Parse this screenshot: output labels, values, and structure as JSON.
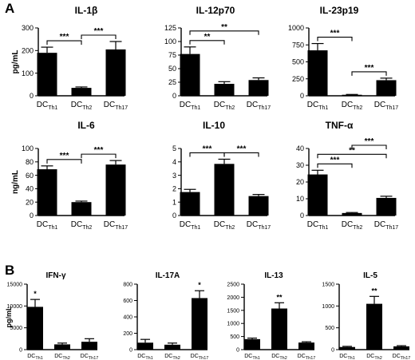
{
  "figure": {
    "panels": [
      {
        "letter": "A",
        "unit_labels": [
          "pg/mL",
          "ng/mL"
        ]
      },
      {
        "letter": "B",
        "unit_labels": [
          "pg/mL"
        ]
      }
    ]
  },
  "chart_data": [
    {
      "panel": "A",
      "type": "bar",
      "title": "IL-1β",
      "categories": [
        {
          "main": "DC",
          "sub": "Th1"
        },
        {
          "main": "DC",
          "sub": "Th2"
        },
        {
          "main": "DC",
          "sub": "Th17"
        }
      ],
      "values": [
        190,
        35,
        205
      ],
      "errors": [
        25,
        4,
        35
      ],
      "ylim": [
        0,
        300
      ],
      "yticks": [
        0,
        100,
        200,
        300
      ],
      "ylabel": "pg/mL",
      "significance": [
        {
          "from": 0,
          "to": 1,
          "label": "***"
        },
        {
          "from": 1,
          "to": 2,
          "label": "***"
        }
      ]
    },
    {
      "panel": "A",
      "type": "bar",
      "title": "IL-12p70",
      "categories": [
        {
          "main": "DC",
          "sub": "Th1"
        },
        {
          "main": "DC",
          "sub": "Th2"
        },
        {
          "main": "DC",
          "sub": "Th17"
        }
      ],
      "values": [
        77,
        22,
        29
      ],
      "errors": [
        13,
        4,
        4
      ],
      "ylim": [
        0,
        125
      ],
      "yticks": [
        0,
        25,
        50,
        75,
        100,
        125
      ],
      "ylabel": "",
      "significance": [
        {
          "from": 0,
          "to": 1,
          "label": "**"
        },
        {
          "from": 0,
          "to": 2,
          "label": "**"
        }
      ]
    },
    {
      "panel": "A",
      "type": "bar",
      "title": "IL-23p19",
      "categories": [
        {
          "main": "DC",
          "sub": "Th1"
        },
        {
          "main": "DC",
          "sub": "Th2"
        },
        {
          "main": "DC",
          "sub": "Th17"
        }
      ],
      "values": [
        670,
        15,
        230
      ],
      "errors": [
        100,
        5,
        30
      ],
      "ylim": [
        0,
        1000
      ],
      "yticks": [
        0,
        250,
        500,
        750,
        1000
      ],
      "ylabel": "",
      "significance": [
        {
          "from": 0,
          "to": 1,
          "label": "***"
        },
        {
          "from": 1,
          "to": 2,
          "label": "***"
        }
      ]
    },
    {
      "panel": "A",
      "type": "bar",
      "title": "IL-6",
      "categories": [
        {
          "main": "DC",
          "sub": "Th1"
        },
        {
          "main": "DC",
          "sub": "Th2"
        },
        {
          "main": "DC",
          "sub": "Th17"
        }
      ],
      "values": [
        69,
        20,
        76
      ],
      "errors": [
        5,
        1.5,
        6
      ],
      "ylim": [
        0,
        100
      ],
      "yticks": [
        0,
        20,
        40,
        60,
        80,
        100
      ],
      "ylabel": "ng/mL",
      "significance": [
        {
          "from": 0,
          "to": 1,
          "label": "***"
        },
        {
          "from": 1,
          "to": 2,
          "label": "***"
        }
      ]
    },
    {
      "panel": "A",
      "type": "bar",
      "title": "IL-10",
      "categories": [
        {
          "main": "DC",
          "sub": "Th1"
        },
        {
          "main": "DC",
          "sub": "Th2"
        },
        {
          "main": "DC",
          "sub": "Th17"
        }
      ],
      "values": [
        1.75,
        3.85,
        1.45
      ],
      "errors": [
        0.2,
        0.35,
        0.12
      ],
      "ylim": [
        0,
        5
      ],
      "yticks": [
        0,
        1,
        2,
        3,
        4,
        5
      ],
      "ylabel": "",
      "significance": [
        {
          "from": 0,
          "to": 1,
          "label": "***"
        },
        {
          "from": 1,
          "to": 2,
          "label": "***"
        }
      ]
    },
    {
      "panel": "A",
      "type": "bar",
      "title": "TNF-α",
      "categories": [
        {
          "main": "DC",
          "sub": "Th1"
        },
        {
          "main": "DC",
          "sub": "Th2"
        },
        {
          "main": "DC",
          "sub": "Th17"
        }
      ],
      "values": [
        24.5,
        1.5,
        10.5
      ],
      "errors": [
        2.5,
        0.3,
        1
      ],
      "ylim": [
        0,
        40
      ],
      "yticks": [
        0,
        10,
        20,
        30,
        40
      ],
      "ylabel": "",
      "significance": [
        {
          "from": 0,
          "to": 1,
          "label": "***"
        },
        {
          "from": 0,
          "to": 2,
          "label": "**"
        },
        {
          "from": 1,
          "to": 2,
          "label": "***"
        }
      ]
    },
    {
      "panel": "B",
      "type": "bar",
      "title": "IFN-γ",
      "categories": [
        {
          "main": "DC",
          "sub": "Th1"
        },
        {
          "main": "DC",
          "sub": "Th2"
        },
        {
          "main": "DC",
          "sub": "Th17"
        }
      ],
      "values": [
        9800,
        1200,
        1800
      ],
      "errors": [
        1700,
        300,
        700
      ],
      "ylim": [
        0,
        15000
      ],
      "yticks": [
        0,
        5000,
        10000,
        15000
      ],
      "ylabel": "pg/mL",
      "bar_labels": [
        "*",
        "",
        ""
      ]
    },
    {
      "panel": "B",
      "type": "bar",
      "title": "IL-17A",
      "categories": [
        {
          "main": "DC",
          "sub": "Th1"
        },
        {
          "main": "DC",
          "sub": "Th2"
        },
        {
          "main": "DC",
          "sub": "Th17"
        }
      ],
      "values": [
        85,
        60,
        630
      ],
      "errors": [
        40,
        20,
        90
      ],
      "ylim": [
        0,
        800
      ],
      "yticks": [
        0,
        200,
        400,
        600,
        800
      ],
      "ylabel": "",
      "bar_labels": [
        "",
        "",
        "*"
      ]
    },
    {
      "panel": "B",
      "type": "bar",
      "title": "IL-13",
      "categories": [
        {
          "main": "DC",
          "sub": "Th1"
        },
        {
          "main": "DC",
          "sub": "Th2"
        },
        {
          "main": "DC",
          "sub": "Th17"
        }
      ],
      "values": [
        400,
        1570,
        270
      ],
      "errors": [
        40,
        220,
        30
      ],
      "ylim": [
        0,
        2500
      ],
      "yticks": [
        0,
        500,
        1000,
        1500,
        2000,
        2500
      ],
      "ylabel": "",
      "bar_labels": [
        "",
        "**",
        ""
      ]
    },
    {
      "panel": "B",
      "type": "bar",
      "title": "IL-5",
      "categories": [
        {
          "main": "DC",
          "sub": "Th1"
        },
        {
          "main": "DC",
          "sub": "Th2"
        },
        {
          "main": "DC",
          "sub": "Th17"
        }
      ],
      "values": [
        60,
        1050,
        75
      ],
      "errors": [
        15,
        170,
        15
      ],
      "ylim": [
        0,
        1500
      ],
      "yticks": [
        0,
        500,
        1000,
        1500
      ],
      "ylabel": "",
      "bar_labels": [
        "",
        "**",
        ""
      ]
    }
  ]
}
